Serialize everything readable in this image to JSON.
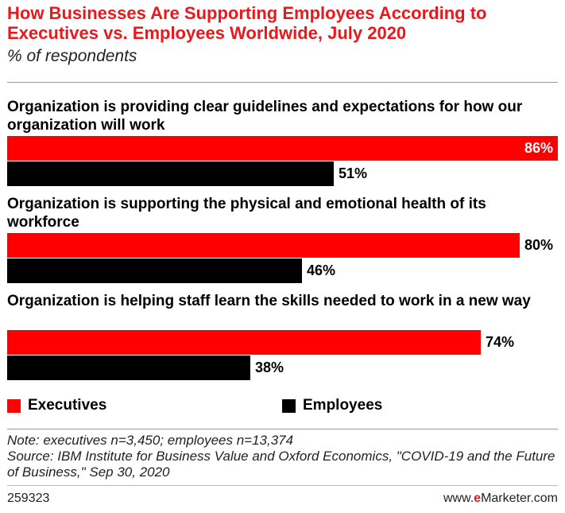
{
  "title": "How Businesses Are Supporting Employees According to Executives vs. Employees Worldwide, July 2020",
  "subtitle": "% of respondents",
  "colors": {
    "executives": "#fe0000",
    "employees": "#000000",
    "title": "#e8191c"
  },
  "chart_data": {
    "type": "bar",
    "orientation": "horizontal",
    "title": "How Businesses Are Supporting Employees According to Executives vs. Employees Worldwide, July 2020",
    "subtitle": "% of respondents",
    "categories": [
      "Organization is providing clear guidelines and expectations for how our organization will work",
      "Organization is supporting the physical and emotional health of its workforce",
      "Organization is helping staff learn the skills needed to work in a new way"
    ],
    "series": [
      {
        "name": "Executives",
        "values": [
          86,
          80,
          74
        ],
        "labels": [
          "86%",
          "80%",
          "74%"
        ]
      },
      {
        "name": "Employees",
        "values": [
          51,
          46,
          38
        ],
        "labels": [
          "51%",
          "46%",
          "38%"
        ]
      }
    ],
    "xlim": [
      0,
      86
    ],
    "grid": false,
    "legend": "bottom"
  },
  "legend": {
    "executives": "Executives",
    "employees": "Employees"
  },
  "note": "Note: executives n=3,450; employees n=13,374",
  "source": "Source: IBM Institute for Business Value and Oxford Economics, \"COVID-19 and the Future of Business,\" Sep 30, 2020",
  "footer": {
    "id": "259323",
    "site_prefix": "www.",
    "site_brand": "e",
    "site_name": "Marketer",
    "site_suffix": ".com"
  }
}
